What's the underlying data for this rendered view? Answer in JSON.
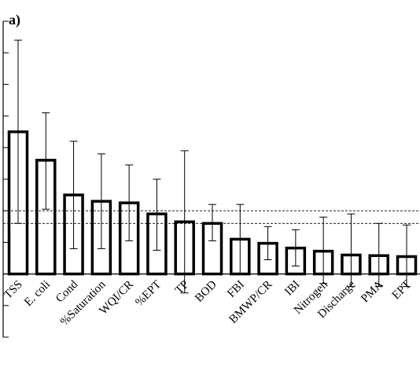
{
  "panel_label": "a)",
  "chart_data": {
    "type": "bar",
    "categories": [
      "TSS",
      "E. coli",
      "Cond",
      "%Saturation",
      "WQI/CR",
      "%EPT",
      "TP",
      "BOD",
      "FBI",
      "BMWP/CR",
      "IBI",
      "Nitrogen",
      "Discharge",
      "PMA",
      "EPT"
    ],
    "values": [
      4.5,
      3.6,
      2.5,
      2.3,
      2.25,
      1.9,
      1.65,
      1.6,
      1.1,
      0.97,
      0.82,
      0.72,
      0.6,
      0.58,
      0.55
    ],
    "error_upper": [
      7.4,
      5.1,
      4.2,
      3.8,
      3.45,
      3.0,
      3.9,
      2.2,
      2.2,
      1.5,
      1.4,
      1.8,
      1.9,
      1.6,
      1.55
    ],
    "error_lower": [
      1.6,
      2.05,
      0.8,
      0.8,
      1.05,
      0.75,
      -0.6,
      1.05,
      0.0,
      0.45,
      0.25,
      -0.3,
      -0.4,
      -0.4,
      -0.4
    ],
    "reference_lines": [
      2.0,
      1.6
    ],
    "ylim": [
      -2.0,
      8.0
    ],
    "yticks": [
      -2,
      -1,
      0,
      1,
      2,
      3,
      4,
      5,
      6,
      7,
      8
    ],
    "xlabel": "",
    "ylabel": "",
    "title": ""
  }
}
